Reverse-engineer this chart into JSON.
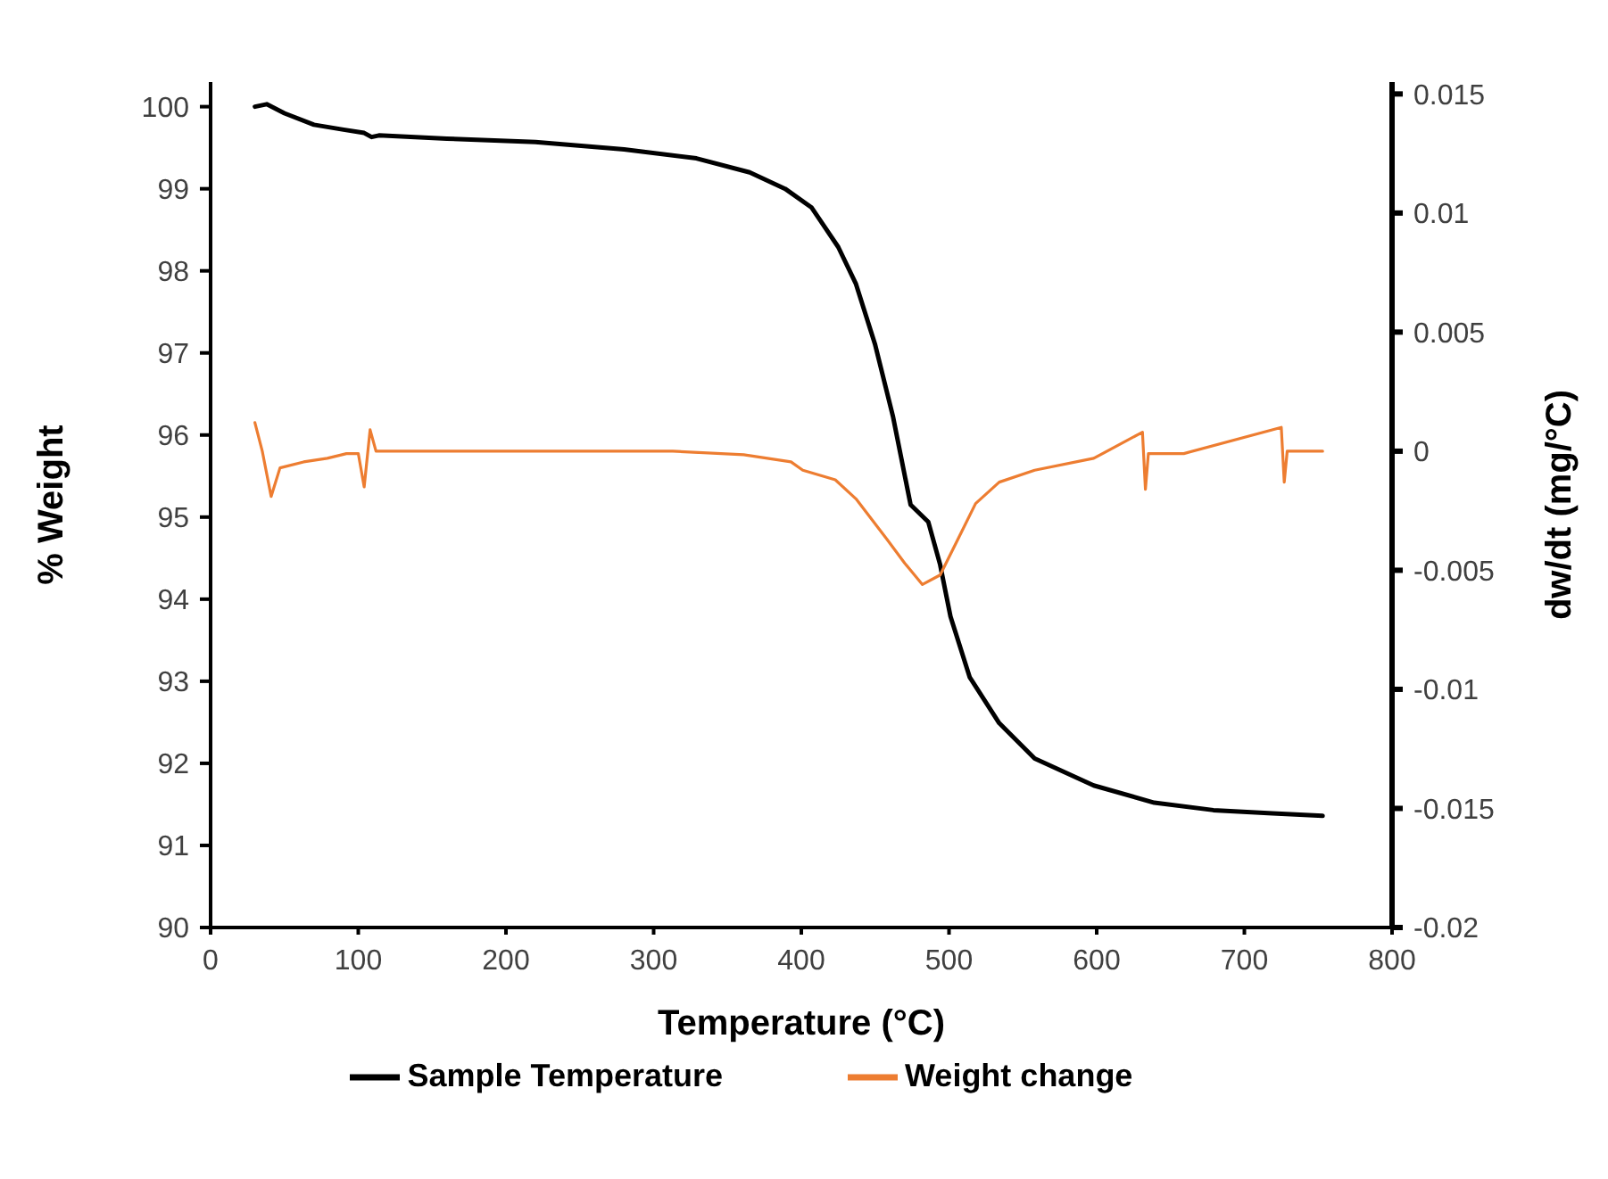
{
  "chart_data": {
    "type": "line",
    "xlabel": "Temperature (°C)",
    "ylabel": "% Weight",
    "y2label": "dw/dt (mg/°C)",
    "xlim": [
      0,
      800
    ],
    "xticks": [
      0,
      100,
      200,
      300,
      400,
      500,
      600,
      700,
      800
    ],
    "ylim": [
      90,
      100.3
    ],
    "yticks": [
      90,
      91,
      92,
      93,
      94,
      95,
      96,
      97,
      98,
      99,
      100
    ],
    "y2lim": [
      -0.02,
      0.0155
    ],
    "y2ticks": [
      -0.02,
      -0.015,
      -0.01,
      -0.005,
      0,
      0.005,
      0.01,
      0.015
    ],
    "grid": false,
    "legend": "bottom",
    "marker": "none",
    "line_style": "solid",
    "series": [
      {
        "name": "Sample Temperature",
        "color": "#000000",
        "x": [
          30,
          38,
          50,
          70,
          90,
          104,
          109,
          114,
          160,
          220,
          280,
          329,
          365,
          389,
          407,
          425,
          437,
          450,
          462,
          474,
          486,
          494,
          501,
          514,
          534,
          558,
          598,
          639,
          679,
          719,
          753
        ],
        "values": [
          100.0,
          100.03,
          99.92,
          99.78,
          99.72,
          99.68,
          99.63,
          99.65,
          99.61,
          99.57,
          99.48,
          99.37,
          99.2,
          99.0,
          98.77,
          98.29,
          97.84,
          97.1,
          96.23,
          95.15,
          94.94,
          94.42,
          93.79,
          93.05,
          92.49,
          92.06,
          91.73,
          91.52,
          91.43,
          91.39,
          91.36
        ]
      },
      {
        "name": "Weight change",
        "color": "#ed7d31",
        "axis": "y2",
        "x": [
          30,
          35,
          41,
          47,
          63,
          79,
          92,
          100,
          104,
          108,
          112,
          200,
          313,
          361,
          393,
          401,
          423,
          437,
          458,
          470,
          482,
          494,
          506,
          518,
          534,
          558,
          598,
          631,
          633,
          635,
          639,
          659,
          725,
          727,
          729,
          753
        ],
        "values": [
          0.0012,
          0,
          -0.0019,
          -0.0007,
          -0.00045,
          -0.0003,
          -0.0001,
          -0.0001,
          -0.0015,
          0.0009,
          0,
          0,
          0,
          -0.00015,
          -0.00045,
          -0.0008,
          -0.0012,
          -0.002,
          -0.0037,
          -0.0047,
          -0.0056,
          -0.0052,
          -0.0037,
          -0.0022,
          -0.0013,
          -0.0008,
          -0.0003,
          0.0008,
          -0.0016,
          -0.0001,
          -0.0001,
          -0.0001,
          0.001,
          -0.0013,
          0,
          0
        ]
      }
    ]
  }
}
